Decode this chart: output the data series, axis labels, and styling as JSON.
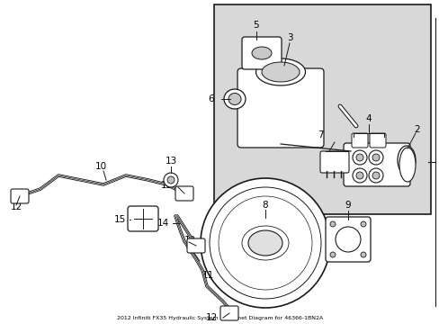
{
  "title": "2012 Infiniti FX35 Hydraulic System Grommet Diagram for 46366-1BN2A",
  "bg_color": "#ffffff",
  "box_bg": "#d8d8d8",
  "line_color": "#1a1a1a",
  "text_color": "#000000",
  "fig_width": 4.89,
  "fig_height": 3.6,
  "dpi": 100
}
